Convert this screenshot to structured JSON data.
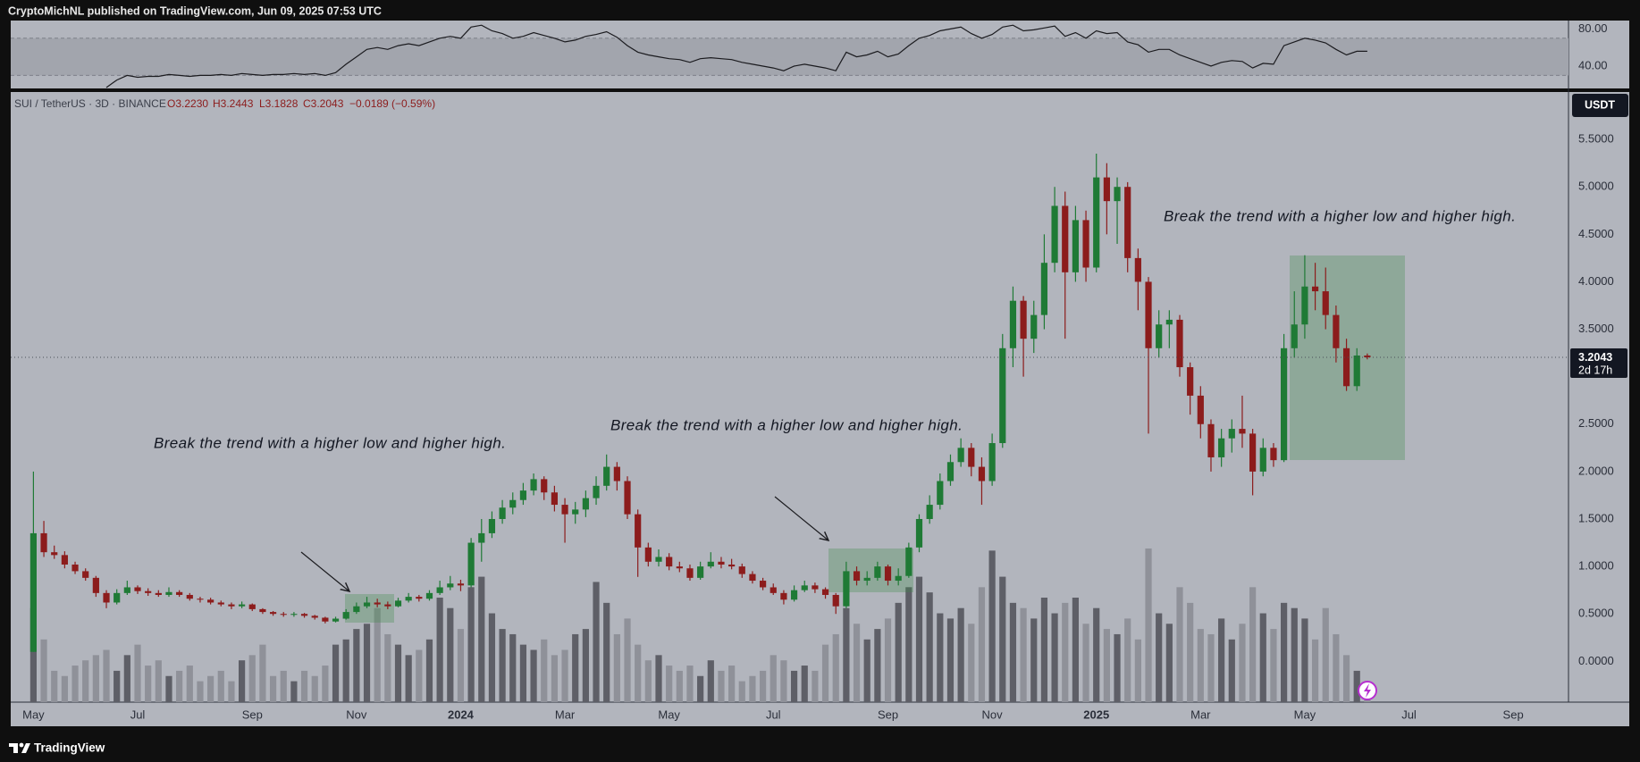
{
  "header": "CryptoMichNL published on TradingView.com, Jun 09, 2025 07:53 UTC",
  "footer": "TradingView",
  "chart_data": {
    "type": "candlestick",
    "symbol": "SUI / TetherUS · 3D · BINANCE",
    "legend_values": [
      "O3.2230",
      "H3.2443",
      "L3.1828",
      "C3.2043",
      "−0.0189 (−0.59%)"
    ],
    "currency": "USDT",
    "categories": [
      "May",
      null,
      null,
      null,
      null,
      null,
      null,
      null,
      null,
      null,
      "Jul",
      null,
      null,
      null,
      null,
      null,
      null,
      null,
      null,
      null,
      null,
      "Sep",
      null,
      null,
      null,
      null,
      null,
      null,
      null,
      null,
      null,
      "Nov",
      null,
      null,
      null,
      null,
      null,
      null,
      null,
      null,
      null,
      "2024",
      null,
      null,
      null,
      null,
      null,
      null,
      null,
      null,
      null,
      "Mar",
      null,
      null,
      null,
      null,
      null,
      null,
      null,
      null,
      null,
      "May",
      null,
      null,
      null,
      null,
      null,
      null,
      null,
      null,
      null,
      "Jul",
      null,
      null,
      null,
      null,
      null,
      null,
      null,
      null,
      null,
      null,
      "Sep",
      null,
      null,
      null,
      null,
      null,
      null,
      null,
      null,
      null,
      "Nov",
      null,
      null,
      null,
      null,
      null,
      null,
      null,
      null,
      null,
      "2025",
      null,
      null,
      null,
      null,
      null,
      null,
      null,
      null,
      null,
      "Mar",
      null,
      null,
      null,
      null,
      null,
      null,
      null,
      null,
      null,
      "May",
      null,
      null,
      null,
      null,
      null,
      null,
      null,
      null,
      null,
      "Jul",
      null,
      null,
      null,
      null,
      null,
      null,
      null,
      null,
      null,
      "Sep",
      null,
      null,
      null,
      null
    ],
    "open": [
      0.1,
      1.35,
      1.15,
      1.12,
      1.02,
      0.95,
      0.88,
      0.72,
      0.62,
      0.72,
      0.78,
      0.74,
      0.72,
      0.7,
      0.73,
      0.7,
      0.66,
      0.65,
      0.62,
      0.6,
      0.58,
      0.6,
      0.55,
      0.52,
      0.5,
      0.49,
      0.5,
      0.48,
      0.46,
      0.42,
      0.45,
      0.52,
      0.58,
      0.62,
      0.6,
      0.58,
      0.64,
      0.68,
      0.66,
      0.72,
      0.78,
      0.82,
      0.8,
      1.25,
      1.35,
      1.5,
      1.62,
      1.7,
      1.8,
      1.92,
      1.78,
      1.65,
      1.55,
      1.6,
      1.72,
      1.85,
      2.05,
      1.9,
      1.55,
      1.2,
      1.05,
      1.1,
      1.0,
      0.98,
      0.88,
      1.0,
      1.05,
      1.02,
      1.0,
      0.92,
      0.85,
      0.78,
      0.72,
      0.65,
      0.75,
      0.8,
      0.76,
      0.7,
      0.58,
      0.95,
      0.85,
      0.88,
      1.0,
      0.85,
      0.9,
      1.2,
      1.5,
      1.65,
      1.9,
      2.1,
      2.25,
      2.05,
      1.9,
      2.3,
      3.3,
      3.8,
      3.4,
      3.65,
      4.2,
      4.8,
      4.1,
      4.65,
      4.15,
      5.1,
      4.85,
      5.0,
      4.25,
      4.0,
      3.3,
      3.55,
      3.6,
      3.1,
      2.8,
      2.5,
      2.15,
      2.35,
      2.45,
      2.4,
      2.0,
      2.25,
      2.12,
      3.3,
      3.55,
      3.95,
      3.9,
      3.65,
      3.3,
      2.9,
      3.223,
      null,
      null,
      null,
      null,
      null,
      null,
      null,
      null,
      null,
      null,
      null,
      null,
      null,
      null,
      null,
      null,
      null,
      null
    ],
    "high": [
      2.0,
      1.48,
      1.22,
      1.16,
      1.05,
      0.98,
      0.9,
      0.75,
      0.76,
      0.85,
      0.8,
      0.77,
      0.75,
      0.78,
      0.75,
      0.72,
      0.68,
      0.67,
      0.64,
      0.62,
      0.63,
      0.61,
      0.56,
      0.53,
      0.52,
      0.52,
      0.51,
      0.49,
      0.47,
      0.47,
      0.55,
      0.62,
      0.68,
      0.66,
      0.63,
      0.67,
      0.72,
      0.7,
      0.75,
      0.85,
      0.9,
      0.86,
      1.3,
      1.5,
      1.58,
      1.7,
      1.78,
      1.88,
      1.98,
      1.95,
      1.85,
      1.72,
      1.68,
      1.8,
      1.95,
      2.18,
      2.1,
      1.95,
      1.6,
      1.25,
      1.18,
      1.14,
      1.05,
      1.02,
      1.05,
      1.15,
      1.1,
      1.08,
      1.03,
      0.95,
      0.88,
      0.82,
      0.75,
      0.8,
      0.85,
      0.83,
      0.78,
      0.72,
      1.05,
      1.0,
      0.95,
      1.05,
      1.02,
      0.98,
      1.25,
      1.55,
      1.75,
      1.98,
      2.18,
      2.35,
      2.3,
      2.15,
      2.4,
      3.45,
      3.95,
      3.85,
      3.8,
      4.5,
      5.0,
      4.95,
      4.8,
      4.75,
      5.35,
      5.25,
      5.1,
      5.05,
      4.35,
      4.05,
      3.7,
      3.7,
      3.65,
      3.15,
      2.9,
      2.55,
      2.45,
      2.55,
      2.8,
      2.45,
      2.35,
      2.3,
      3.45,
      3.9,
      4.28,
      4.2,
      4.15,
      3.75,
      3.4,
      3.3,
      3.2443,
      null,
      null,
      null,
      null,
      null,
      null,
      null,
      null,
      null,
      null,
      null,
      null,
      null,
      null,
      null,
      null,
      null,
      null
    ],
    "low": [
      0.1,
      1.1,
      1.08,
      0.98,
      0.92,
      0.85,
      0.68,
      0.56,
      0.6,
      0.7,
      0.71,
      0.69,
      0.68,
      0.68,
      0.68,
      0.64,
      0.62,
      0.6,
      0.58,
      0.55,
      0.56,
      0.53,
      0.5,
      0.48,
      0.47,
      0.47,
      0.46,
      0.44,
      0.4,
      0.41,
      0.44,
      0.5,
      0.56,
      0.57,
      0.55,
      0.57,
      0.62,
      0.63,
      0.64,
      0.7,
      0.75,
      0.74,
      0.78,
      1.05,
      1.3,
      1.45,
      1.55,
      1.65,
      1.75,
      1.7,
      1.58,
      1.25,
      1.45,
      1.52,
      1.65,
      1.8,
      1.8,
      1.5,
      0.89,
      1.0,
      1.0,
      0.96,
      0.94,
      0.85,
      0.86,
      0.98,
      0.98,
      0.97,
      0.88,
      0.82,
      0.75,
      0.7,
      0.6,
      0.63,
      0.73,
      0.72,
      0.66,
      0.5,
      0.56,
      0.8,
      0.8,
      0.85,
      0.8,
      0.8,
      0.88,
      1.15,
      1.45,
      1.6,
      1.85,
      2.05,
      1.95,
      1.65,
      1.85,
      2.25,
      3.1,
      3.0,
      3.25,
      3.5,
      4.1,
      3.4,
      4.0,
      4.0,
      4.1,
      4.5,
      4.4,
      4.1,
      3.7,
      2.4,
      3.2,
      3.3,
      3.0,
      2.6,
      2.35,
      2.0,
      2.05,
      2.2,
      2.25,
      1.75,
      1.95,
      2.05,
      2.1,
      3.2,
      3.4,
      3.7,
      3.5,
      3.15,
      2.85,
      2.85,
      3.1828,
      null,
      null,
      null,
      null,
      null,
      null,
      null,
      null,
      null,
      null,
      null,
      null,
      null,
      null,
      null,
      null,
      null,
      null
    ],
    "close": [
      1.35,
      1.15,
      1.12,
      1.02,
      0.95,
      0.88,
      0.72,
      0.62,
      0.72,
      0.78,
      0.74,
      0.72,
      0.7,
      0.73,
      0.7,
      0.66,
      0.65,
      0.62,
      0.6,
      0.58,
      0.6,
      0.55,
      0.52,
      0.5,
      0.49,
      0.5,
      0.48,
      0.46,
      0.42,
      0.45,
      0.52,
      0.58,
      0.62,
      0.6,
      0.58,
      0.64,
      0.68,
      0.66,
      0.72,
      0.78,
      0.82,
      0.8,
      1.25,
      1.35,
      1.5,
      1.62,
      1.7,
      1.8,
      1.92,
      1.78,
      1.65,
      1.55,
      1.6,
      1.72,
      1.85,
      2.05,
      1.9,
      1.55,
      1.2,
      1.05,
      1.1,
      1.0,
      0.98,
      0.88,
      1.0,
      1.05,
      1.02,
      1.0,
      0.92,
      0.85,
      0.78,
      0.72,
      0.65,
      0.75,
      0.8,
      0.76,
      0.7,
      0.58,
      0.95,
      0.85,
      0.88,
      1.0,
      0.85,
      0.9,
      1.2,
      1.5,
      1.65,
      1.9,
      2.1,
      2.25,
      2.05,
      1.9,
      2.3,
      3.3,
      3.8,
      3.4,
      3.65,
      4.2,
      4.8,
      4.1,
      4.65,
      4.15,
      5.1,
      4.85,
      5.0,
      4.25,
      4.0,
      3.3,
      3.55,
      3.6,
      3.1,
      2.8,
      2.5,
      2.15,
      2.35,
      2.45,
      2.4,
      2.0,
      2.25,
      2.12,
      3.3,
      3.55,
      3.95,
      3.9,
      3.65,
      3.3,
      2.9,
      3.223,
      3.2043,
      null,
      null,
      null,
      null,
      null,
      null,
      null,
      null,
      null,
      null,
      null,
      null,
      null,
      null,
      null,
      null,
      null,
      null
    ],
    "up_color": "#1f7a35",
    "down_color": "#8c1c1c",
    "ylim": [
      -0.43,
      6.0
    ],
    "yticks": [
      {
        "value": 0,
        "label": "0.0000"
      },
      {
        "value": 0.5,
        "label": "0.5000"
      },
      {
        "value": 1,
        "label": "1.0000"
      },
      {
        "value": 1.5,
        "label": "1.5000"
      },
      {
        "value": 2,
        "label": "2.0000"
      },
      {
        "value": 2.5,
        "label": "2.5000"
      },
      {
        "value": 3.5,
        "label": "3.5000"
      },
      {
        "value": 4,
        "label": "4.0000"
      },
      {
        "value": 4.5,
        "label": "4.5000"
      },
      {
        "value": 5,
        "label": "5.0000"
      },
      {
        "value": 5.5,
        "label": "5.5000"
      }
    ],
    "last_price": {
      "value": 3.2043,
      "label": "3.2043"
    },
    "countdown": "2d 17h",
    "volume": {
      "up_color": "#5e5f67",
      "down_color": "#8f9199",
      "values": [
        90,
        60,
        30,
        25,
        35,
        40,
        45,
        50,
        30,
        45,
        55,
        35,
        40,
        25,
        30,
        35,
        20,
        25,
        30,
        20,
        40,
        45,
        55,
        25,
        30,
        20,
        30,
        25,
        35,
        55,
        60,
        70,
        75,
        90,
        65,
        55,
        45,
        50,
        60,
        100,
        90,
        70,
        110,
        120,
        85,
        70,
        65,
        55,
        50,
        60,
        45,
        50,
        65,
        70,
        115,
        95,
        65,
        80,
        55,
        40,
        45,
        35,
        30,
        35,
        25,
        40,
        30,
        35,
        20,
        25,
        30,
        45,
        40,
        30,
        35,
        30,
        55,
        65,
        90,
        75,
        60,
        70,
        80,
        95,
        110,
        120,
        105,
        85,
        80,
        90,
        75,
        110,
        145,
        120,
        95,
        90,
        80,
        100,
        85,
        95,
        100,
        75,
        90,
        70,
        65,
        80,
        60,
        147,
        85,
        75,
        110,
        95,
        70,
        65,
        80,
        60,
        75,
        110,
        85,
        70,
        95,
        90,
        80,
        60,
        90,
        65,
        45,
        30,
        20,
        null,
        null,
        null,
        null,
        null,
        null,
        null,
        null,
        null,
        null,
        null,
        null,
        null,
        null,
        null,
        null,
        null,
        null
      ]
    },
    "rsi": {
      "color": "#1b1b1f",
      "ylim": [
        16,
        89
      ],
      "bands": [
        30,
        70
      ],
      "yticks": [
        {
          "value": 40,
          "label": "40.00"
        },
        {
          "value": 80,
          "label": "80.00"
        }
      ],
      "values": [
        null,
        null,
        null,
        null,
        null,
        null,
        null,
        17,
        25,
        30,
        28,
        29,
        29,
        31,
        30,
        29,
        30,
        30,
        31,
        30,
        32,
        31,
        30,
        31,
        31,
        32,
        31,
        32,
        30,
        33,
        42,
        50,
        58,
        60,
        58,
        62,
        64,
        62,
        66,
        70,
        72,
        70,
        82,
        84,
        78,
        75,
        70,
        72,
        76,
        73,
        70,
        66,
        68,
        72,
        74,
        77,
        71,
        62,
        55,
        52,
        50,
        48,
        47,
        44,
        48,
        49,
        48,
        47,
        44,
        42,
        40,
        38,
        35,
        40,
        42,
        40,
        38,
        35,
        55,
        50,
        52,
        56,
        50,
        53,
        62,
        70,
        73,
        78,
        80,
        82,
        75,
        70,
        74,
        82,
        84,
        78,
        79,
        81,
        83,
        72,
        76,
        70,
        78,
        75,
        76,
        66,
        63,
        55,
        58,
        58,
        52,
        48,
        44,
        40,
        44,
        46,
        45,
        38,
        43,
        42,
        62,
        66,
        70,
        68,
        65,
        58,
        52,
        56,
        56,
        null,
        null,
        null,
        null,
        null,
        null,
        null,
        null,
        null,
        null,
        null,
        null,
        null,
        null,
        null,
        null,
        null,
        null
      ]
    },
    "annotations": [
      "Break the trend with a higher low and higher high.",
      "Break the trend with a higher low and higher high.",
      "Break the trend with a higher low and higher high."
    ]
  }
}
